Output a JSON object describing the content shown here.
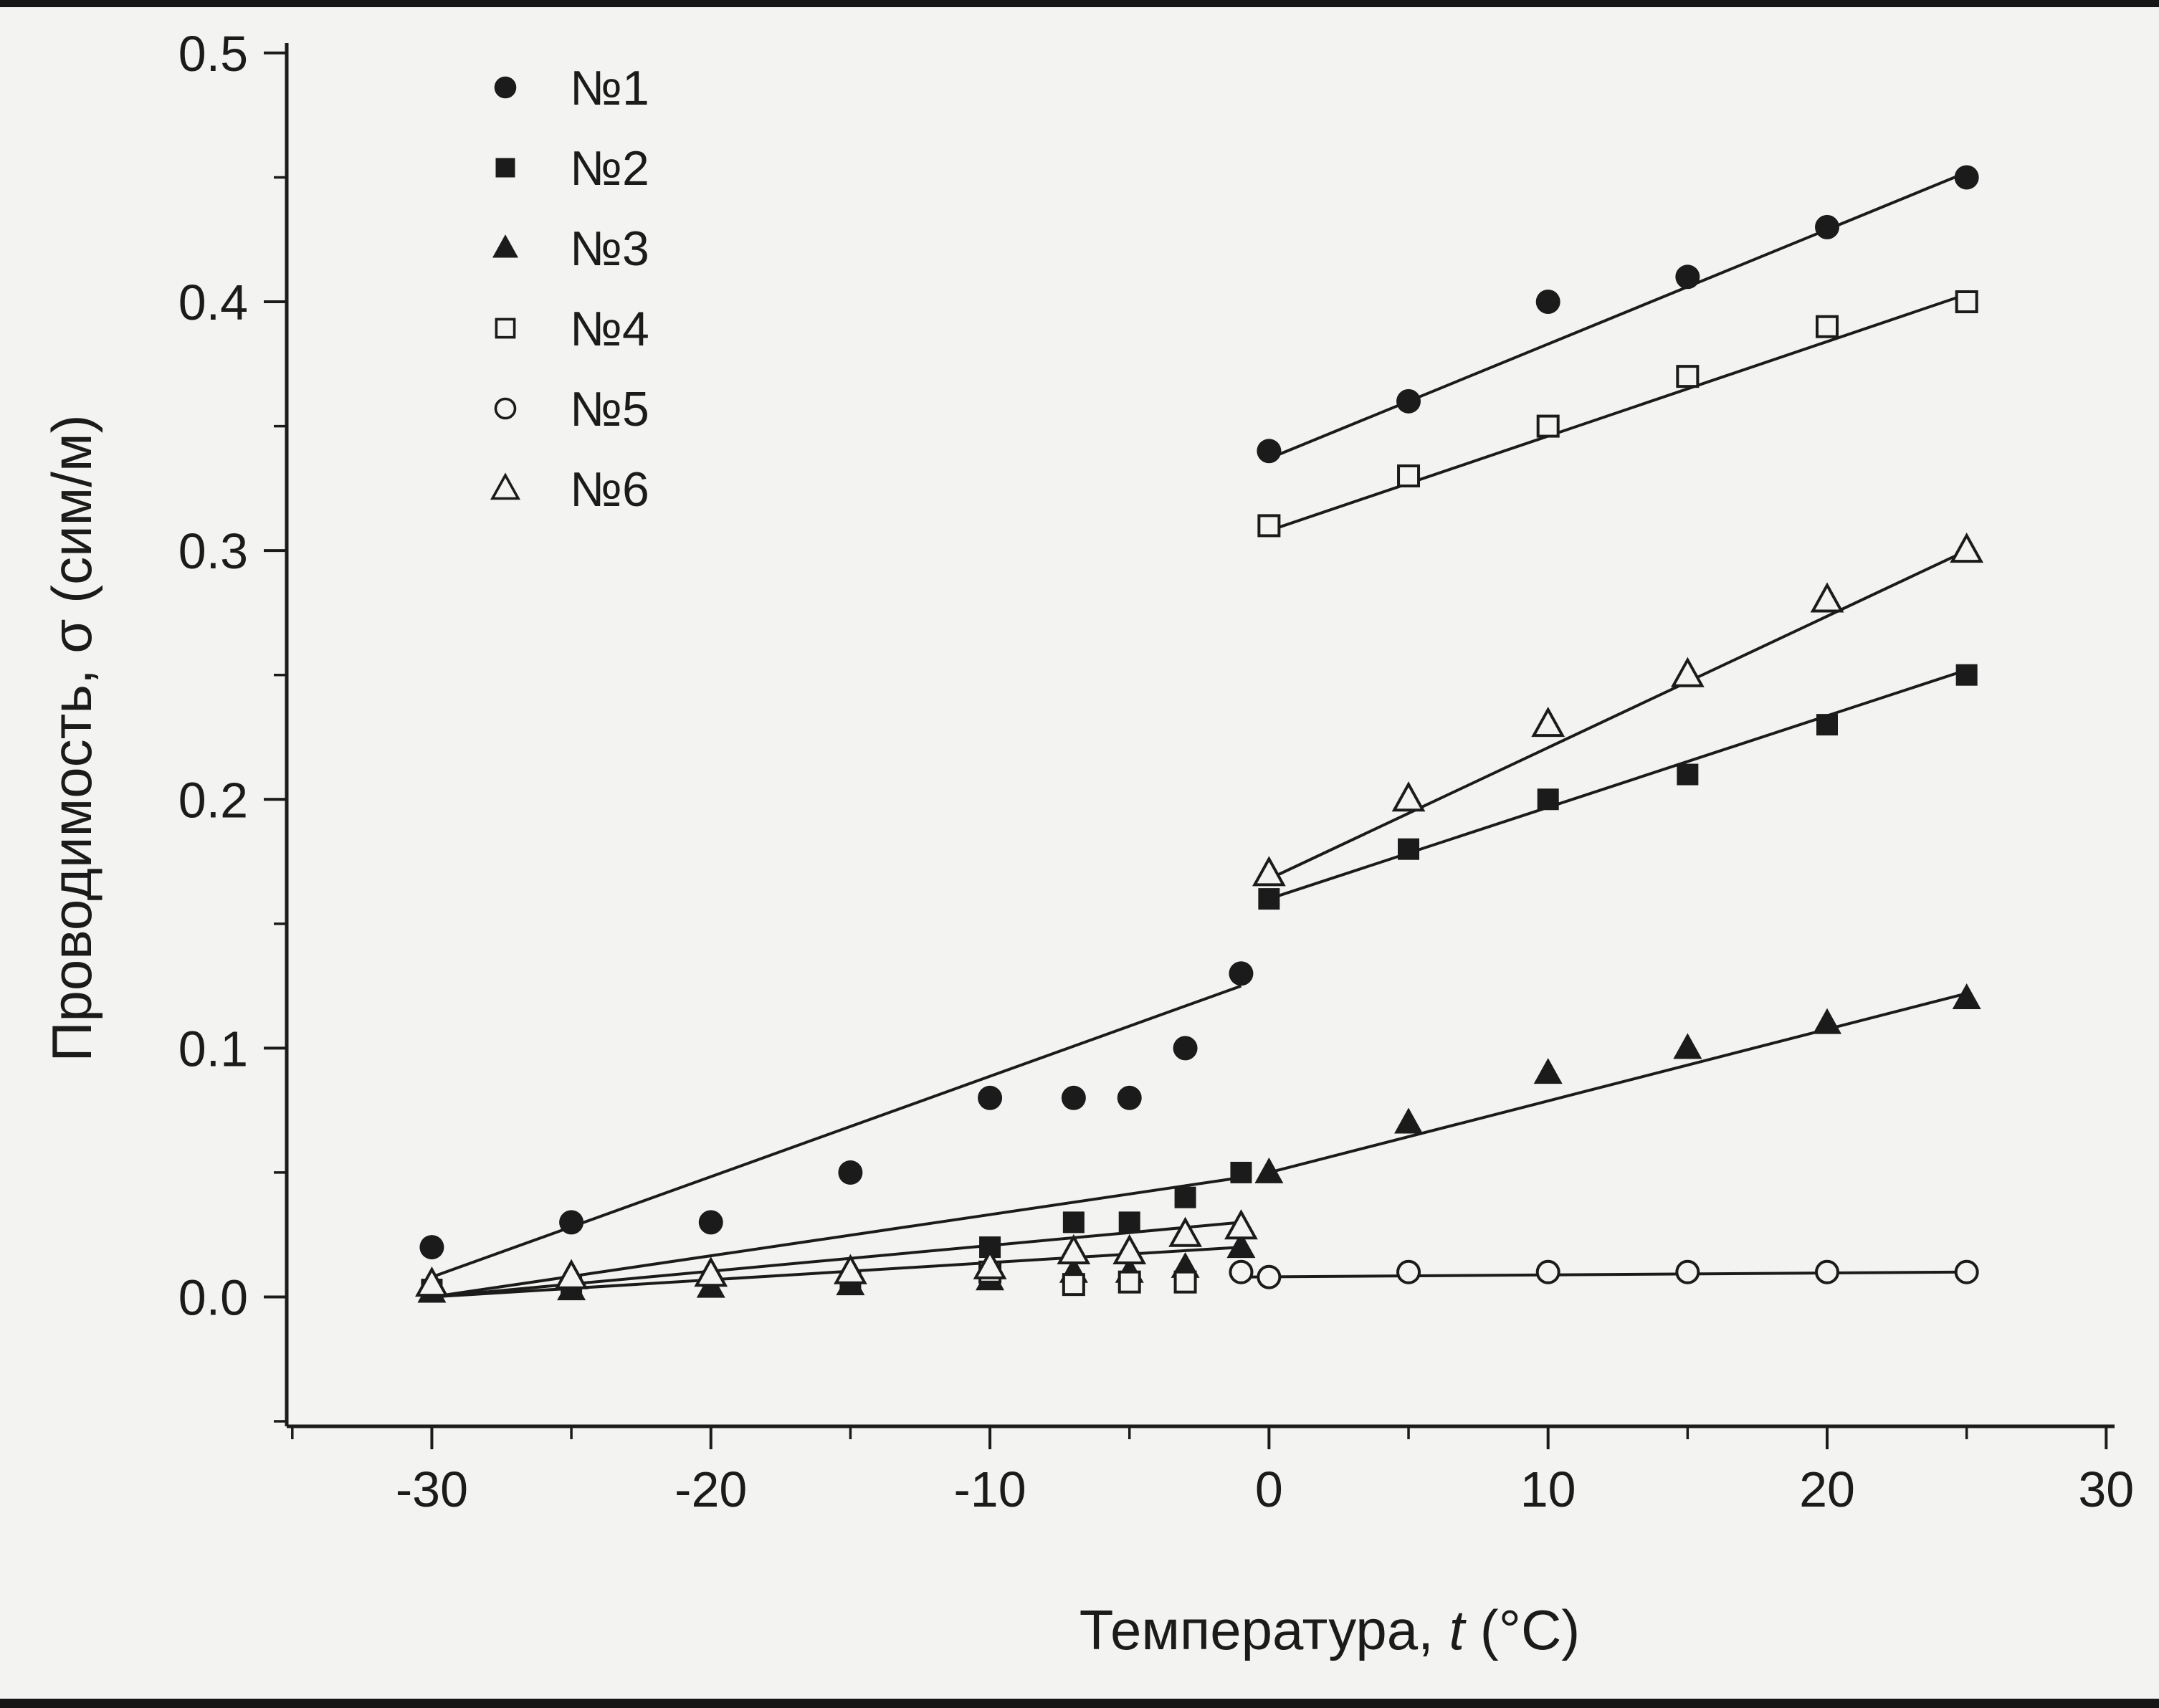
{
  "figure": {
    "background": "#f3f3f1",
    "ink": "#1b1b1b",
    "xlabel_prefix": "Температура, ",
    "xlabel_italic": "t",
    "xlabel_suffix": " (°C)",
    "ylabel": "Проводимость, σ (сим/м)"
  },
  "chart_data": {
    "type": "scatter",
    "title": "",
    "xlabel": "Температура, t (°C)",
    "ylabel": "Проводимость, σ (сим/м)",
    "xlim": [
      -35.2,
      30.3
    ],
    "ylim": [
      -0.052,
      0.504
    ],
    "grid": false,
    "legend_position": "top-left",
    "xticks": {
      "values": [
        -30,
        -20,
        -10,
        0,
        10,
        20,
        30
      ],
      "labels": [
        "-30",
        "-20",
        "-10",
        "0",
        "10",
        "20",
        "30"
      ],
      "minor_step": 5
    },
    "yticks": {
      "values": [
        0,
        0.1,
        0.2,
        0.3,
        0.4,
        0.5
      ],
      "labels": [
        "0.0",
        "0.1",
        "0.2",
        "0.3",
        "0.4",
        "0.5"
      ],
      "minor_step": 0.05
    },
    "series": [
      {
        "name": "№1",
        "marker": "filled-circle",
        "points": [
          [
            -30,
            0.02
          ],
          [
            -25,
            0.03
          ],
          [
            -20,
            0.03
          ],
          [
            -15,
            0.05
          ],
          [
            -10,
            0.08
          ],
          [
            -7,
            0.08
          ],
          [
            -5,
            0.08
          ],
          [
            -3,
            0.1
          ],
          [
            -1,
            0.13
          ],
          [
            0,
            0.34
          ],
          [
            5,
            0.36
          ],
          [
            10,
            0.4
          ],
          [
            15,
            0.41
          ],
          [
            20,
            0.43
          ],
          [
            25,
            0.45
          ]
        ],
        "fit_lines": [
          [
            [
              -30,
              0.008
            ],
            [
              -1,
              0.125
            ]
          ],
          [
            [
              0,
              0.337
            ],
            [
              25,
              0.452
            ]
          ]
        ]
      },
      {
        "name": "№2",
        "marker": "filled-square",
        "points": [
          [
            -30,
            0.003
          ],
          [
            -25,
            0.004
          ],
          [
            -15,
            0.006
          ],
          [
            -10,
            0.02
          ],
          [
            -7,
            0.03
          ],
          [
            -5,
            0.03
          ],
          [
            -3,
            0.04
          ],
          [
            -1,
            0.05
          ],
          [
            0,
            0.16
          ],
          [
            5,
            0.18
          ],
          [
            10,
            0.2
          ],
          [
            15,
            0.21
          ],
          [
            20,
            0.23
          ],
          [
            25,
            0.25
          ]
        ],
        "fit_lines": [
          [
            [
              -30,
              0.0
            ],
            [
              -1,
              0.048
            ]
          ],
          [
            [
              0,
              0.16
            ],
            [
              25,
              0.252
            ]
          ]
        ]
      },
      {
        "name": "№3",
        "marker": "filled-triangle",
        "points": [
          [
            -30,
            0.002
          ],
          [
            -25,
            0.003
          ],
          [
            -20,
            0.004
          ],
          [
            -15,
            0.005
          ],
          [
            -10,
            0.007
          ],
          [
            -7,
            0.01
          ],
          [
            -5,
            0.01
          ],
          [
            -3,
            0.012
          ],
          [
            -1,
            0.02
          ],
          [
            0,
            0.05
          ],
          [
            5,
            0.07
          ],
          [
            10,
            0.09
          ],
          [
            15,
            0.1
          ],
          [
            20,
            0.11
          ],
          [
            25,
            0.12
          ]
        ],
        "fit_lines": [
          [
            [
              -30,
              0.0
            ],
            [
              -1,
              0.02
            ]
          ],
          [
            [
              0,
              0.05
            ],
            [
              25,
              0.122
            ]
          ]
        ]
      },
      {
        "name": "№4",
        "marker": "open-square",
        "points": [
          [
            -10,
            0.01
          ],
          [
            -7,
            0.005
          ],
          [
            -5,
            0.006
          ],
          [
            -3,
            0.006
          ],
          [
            0,
            0.31
          ],
          [
            5,
            0.33
          ],
          [
            10,
            0.35
          ],
          [
            15,
            0.37
          ],
          [
            20,
            0.39
          ],
          [
            25,
            0.4
          ]
        ],
        "fit_lines": [
          [
            [
              0,
              0.308
            ],
            [
              25,
              0.403
            ]
          ]
        ]
      },
      {
        "name": "№5",
        "marker": "open-circle",
        "points": [
          [
            -1,
            0.01
          ],
          [
            0,
            0.008
          ],
          [
            5,
            0.01
          ],
          [
            10,
            0.01
          ],
          [
            15,
            0.01
          ],
          [
            20,
            0.01
          ],
          [
            25,
            0.01
          ]
        ],
        "fit_lines": [
          [
            [
              -1,
              0.008
            ],
            [
              25,
              0.01
            ]
          ]
        ]
      },
      {
        "name": "№6",
        "marker": "open-triangle",
        "points": [
          [
            -30,
            0.005
          ],
          [
            -25,
            0.008
          ],
          [
            -20,
            0.009
          ],
          [
            -15,
            0.01
          ],
          [
            -10,
            0.012
          ],
          [
            -7,
            0.018
          ],
          [
            -5,
            0.018
          ],
          [
            -3,
            0.025
          ],
          [
            -1,
            0.028
          ],
          [
            0,
            0.17
          ],
          [
            5,
            0.2
          ],
          [
            10,
            0.23
          ],
          [
            15,
            0.25
          ],
          [
            20,
            0.28
          ],
          [
            25,
            0.3
          ]
        ],
        "fit_lines": [
          [
            [
              -30,
              0.0
            ],
            [
              -1,
              0.03
            ]
          ],
          [
            [
              0,
              0.168
            ],
            [
              25,
              0.3
            ]
          ]
        ]
      }
    ]
  }
}
